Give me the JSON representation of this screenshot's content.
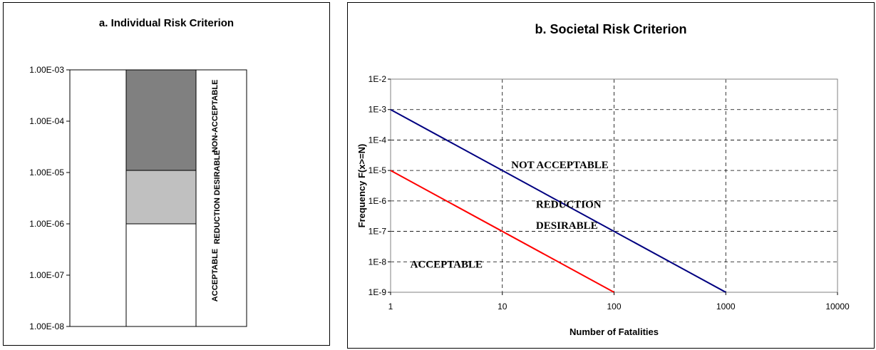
{
  "chart_data": [
    {
      "type": "bar",
      "title": "a. Individual Risk Criterion",
      "y_scale": "log",
      "ylim": [
        1e-08,
        0.001
      ],
      "y_tick_labels": [
        "1.00E-03",
        "1.00E-04",
        "1.00E-05",
        "1.00E-06",
        "1.00E-07",
        "1.00E-08"
      ],
      "bands": [
        {
          "label": "ACCEPTABLE",
          "from": 1e-08,
          "to": 1e-06,
          "color": "#ffffff"
        },
        {
          "label": "REDUCTION DESIRABLE",
          "from": 1e-06,
          "to": 1.1e-05,
          "color": "#c0c0c0"
        },
        {
          "label": "NON-ACCEPTABLE",
          "from": 1.1e-05,
          "to": 0.001,
          "color": "#808080"
        }
      ]
    },
    {
      "type": "line",
      "title": "b. Societal Risk Criterion",
      "xlabel": "Number of Fatalities",
      "ylabel": "Frequency F(x>=N)",
      "x_scale": "log",
      "y_scale": "log",
      "xlim": [
        1,
        10000
      ],
      "ylim": [
        1e-09,
        0.01
      ],
      "x_tick_labels": [
        "1",
        "10",
        "100",
        "1000",
        "10000"
      ],
      "y_tick_labels": [
        "1E-2",
        "1E-3",
        "1E-4",
        "1E-5",
        "1E-6",
        "1E-7",
        "1E-8",
        "1E-9"
      ],
      "grid": true,
      "series": [
        {
          "color": "#000080",
          "points": [
            [
              1,
              0.001
            ],
            [
              1000,
              1e-09
            ]
          ]
        },
        {
          "color": "#ff0000",
          "points": [
            [
              1,
              1e-05
            ],
            [
              100,
              1e-09
            ]
          ]
        }
      ],
      "annotations": [
        {
          "text": "NOT ACCEPTABLE",
          "x": 12,
          "y": 1.2e-05
        },
        {
          "text": "REDUCTION",
          "x": 20,
          "y": 6e-07
        },
        {
          "text": "DESIRABLE",
          "x": 20,
          "y": 1.2e-07
        },
        {
          "text": "ACCEPTABLE",
          "x": 1.5,
          "y": 6.5e-09
        }
      ]
    }
  ]
}
